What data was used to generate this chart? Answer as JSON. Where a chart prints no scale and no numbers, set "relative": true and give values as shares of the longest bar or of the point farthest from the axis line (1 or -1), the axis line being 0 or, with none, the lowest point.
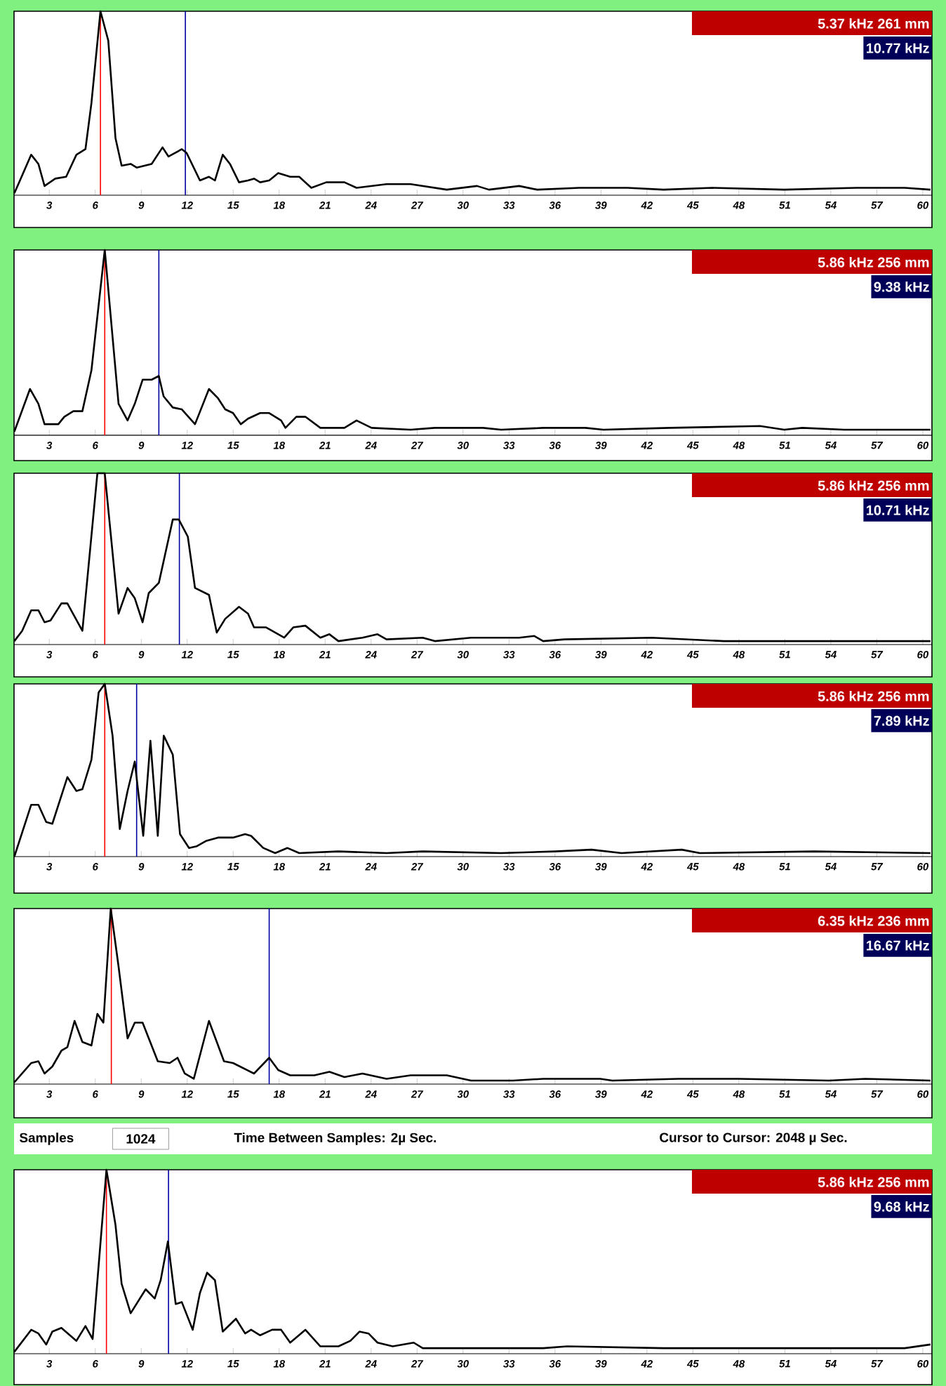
{
  "chart_data": [
    {
      "type": "line",
      "relative": true,
      "xlim": [
        0.7,
        60.6
      ],
      "xticks": [
        3,
        6,
        9,
        12,
        15,
        18,
        21,
        24,
        27,
        30,
        33,
        36,
        39,
        42,
        45,
        48,
        51,
        54,
        57,
        60
      ],
      "marker": "none",
      "series": [
        {
          "color": "#000000",
          "x": [
            0.72,
            1.82,
            2.29,
            2.69,
            3.39,
            4.1,
            4.77,
            5.36,
            5.75,
            6.34,
            6.85,
            7.32,
            7.72,
            8.31,
            8.7,
            9.68,
            10.39,
            10.78,
            11.65,
            11.96,
            12.83,
            13.42,
            13.81,
            14.32,
            14.79,
            15.38,
            15.97,
            16.36,
            16.76,
            17.35,
            17.94,
            18.72,
            19.31,
            20.1,
            21.08,
            22.26,
            23.05,
            25.01,
            26.58,
            28.94,
            30.91,
            31.69,
            33.66,
            34.84,
            37.59,
            40.74,
            43.09,
            46.24,
            50.96,
            55.67,
            58.82,
            60.5
          ],
          "values": [
            0.01,
            0.22,
            0.17,
            0.05,
            0.09,
            0.1,
            0.22,
            0.25,
            0.5,
            1.0,
            0.84,
            0.31,
            0.16,
            0.17,
            0.15,
            0.17,
            0.26,
            0.21,
            0.25,
            0.23,
            0.08,
            0.1,
            0.08,
            0.22,
            0.17,
            0.07,
            0.08,
            0.09,
            0.07,
            0.08,
            0.12,
            0.1,
            0.1,
            0.04,
            0.07,
            0.07,
            0.04,
            0.06,
            0.06,
            0.03,
            0.05,
            0.03,
            0.05,
            0.03,
            0.04,
            0.04,
            0.03,
            0.04,
            0.03,
            0.04,
            0.04,
            0.03
          ]
        }
      ],
      "ref_lines": [
        {
          "axis": "x",
          "value": 6.34,
          "color": "#ff0000"
        },
        {
          "axis": "x",
          "value": 11.88,
          "color": "#0000a0"
        }
      ],
      "annotations": [
        "5.37 kHz  261 mm",
        "10.77 kHz"
      ]
    },
    {
      "type": "line",
      "relative": true,
      "xlim": [
        0.7,
        60.6
      ],
      "xticks": [
        3,
        6,
        9,
        12,
        15,
        18,
        21,
        24,
        27,
        30,
        33,
        36,
        39,
        42,
        45,
        48,
        51,
        54,
        57,
        60
      ],
      "marker": "none",
      "series": [
        {
          "color": "#000000",
          "x": [
            0.72,
            1.74,
            2.29,
            2.69,
            3.59,
            3.98,
            4.57,
            5.16,
            5.75,
            6.62,
            7.52,
            8.11,
            8.58,
            9.09,
            9.68,
            10.15,
            10.46,
            11.06,
            11.65,
            12.51,
            13.42,
            14.01,
            14.48,
            14.99,
            15.5,
            15.97,
            16.76,
            17.35,
            18.13,
            18.41,
            19.12,
            19.71,
            20.69,
            22.26,
            23.05,
            24.03,
            26.58,
            28.16,
            31.3,
            32.48,
            35.23,
            37.98,
            39.16,
            43.48,
            49.38,
            50.96,
            52.13,
            54.88,
            60.5
          ],
          "values": [
            0.02,
            0.25,
            0.17,
            0.06,
            0.06,
            0.1,
            0.13,
            0.13,
            0.35,
            1.0,
            0.17,
            0.08,
            0.17,
            0.3,
            0.3,
            0.32,
            0.21,
            0.15,
            0.14,
            0.06,
            0.25,
            0.2,
            0.14,
            0.12,
            0.06,
            0.09,
            0.12,
            0.12,
            0.08,
            0.04,
            0.1,
            0.1,
            0.04,
            0.04,
            0.08,
            0.04,
            0.03,
            0.04,
            0.04,
            0.03,
            0.04,
            0.04,
            0.03,
            0.04,
            0.05,
            0.03,
            0.04,
            0.03,
            0.03
          ]
        }
      ],
      "ref_lines": [
        {
          "axis": "x",
          "value": 6.62,
          "color": "#ff0000"
        },
        {
          "axis": "x",
          "value": 10.15,
          "color": "#0000a0"
        }
      ],
      "annotations": [
        "5.86 kHz  256 mm",
        "9.38 kHz"
      ]
    },
    {
      "type": "line",
      "relative": true,
      "xlim": [
        0.7,
        60.6
      ],
      "xticks": [
        3,
        6,
        9,
        12,
        15,
        18,
        21,
        24,
        27,
        30,
        33,
        36,
        39,
        42,
        45,
        48,
        51,
        54,
        57,
        60
      ],
      "marker": "none",
      "series": [
        {
          "color": "#000000",
          "x": [
            0.72,
            1.23,
            1.82,
            2.29,
            2.69,
            3.08,
            3.79,
            4.18,
            5.16,
            6.14,
            6.62,
            7.52,
            8.11,
            8.58,
            9.09,
            9.49,
            10.15,
            11.06,
            11.45,
            12.04,
            12.51,
            13.42,
            13.93,
            14.48,
            15.38,
            15.97,
            16.36,
            17.15,
            18.33,
            18.92,
            19.71,
            20.69,
            21.28,
            21.87,
            23.44,
            24.42,
            25.01,
            27.37,
            28.16,
            30.52,
            33.66,
            34.65,
            35.23,
            36.61,
            42.31,
            47.03,
            54.88,
            60.5
          ],
          "values": [
            0.02,
            0.08,
            0.2,
            0.2,
            0.13,
            0.14,
            0.24,
            0.24,
            0.08,
            1.0,
            1.0,
            0.18,
            0.33,
            0.27,
            0.13,
            0.3,
            0.36,
            0.73,
            0.73,
            0.63,
            0.33,
            0.29,
            0.07,
            0.15,
            0.22,
            0.18,
            0.1,
            0.1,
            0.04,
            0.1,
            0.11,
            0.04,
            0.06,
            0.02,
            0.04,
            0.06,
            0.03,
            0.04,
            0.02,
            0.04,
            0.04,
            0.05,
            0.02,
            0.03,
            0.04,
            0.02,
            0.02,
            0.02
          ]
        }
      ],
      "ref_lines": [
        {
          "axis": "x",
          "value": 6.62,
          "color": "#ff0000"
        },
        {
          "axis": "x",
          "value": 11.49,
          "color": "#0000a0"
        }
      ],
      "annotations": [
        "5.86 kHz  256 mm",
        "10.71 kHz"
      ]
    },
    {
      "type": "line",
      "relative": true,
      "xlim": [
        0.7,
        60.6
      ],
      "xticks": [
        3,
        6,
        9,
        12,
        15,
        18,
        21,
        24,
        27,
        30,
        33,
        36,
        39,
        42,
        45,
        48,
        51,
        54,
        57,
        60
      ],
      "marker": "none",
      "series": [
        {
          "color": "#000000",
          "x": [
            0.72,
            1.82,
            2.29,
            2.8,
            3.2,
            4.18,
            4.77,
            5.16,
            5.75,
            6.22,
            6.62,
            7.13,
            7.6,
            8.11,
            8.58,
            9.13,
            9.6,
            10.08,
            10.47,
            11.06,
            11.53,
            12.12,
            12.63,
            13.22,
            14.01,
            14.99,
            15.78,
            16.17,
            16.96,
            17.74,
            18.53,
            19.31,
            21.87,
            25.01,
            27.37,
            32.48,
            36.02,
            38.38,
            40.34,
            44.27,
            45.45,
            52.92,
            60.5
          ],
          "values": [
            0.0,
            0.3,
            0.3,
            0.2,
            0.19,
            0.46,
            0.38,
            0.39,
            0.56,
            0.95,
            1.0,
            0.7,
            0.16,
            0.38,
            0.55,
            0.12,
            0.67,
            0.12,
            0.7,
            0.59,
            0.13,
            0.05,
            0.06,
            0.09,
            0.11,
            0.11,
            0.13,
            0.12,
            0.05,
            0.02,
            0.05,
            0.02,
            0.03,
            0.02,
            0.03,
            0.02,
            0.03,
            0.04,
            0.02,
            0.04,
            0.02,
            0.03,
            0.02
          ]
        }
      ],
      "ref_lines": [
        {
          "axis": "x",
          "value": 6.62,
          "color": "#ff0000"
        },
        {
          "axis": "x",
          "value": 8.7,
          "color": "#0000a0"
        }
      ],
      "annotations": [
        "5.86 kHz  256 mm",
        "7.89 kHz"
      ]
    },
    {
      "type": "line",
      "relative": true,
      "xlim": [
        0.7,
        60.6
      ],
      "xticks": [
        3,
        6,
        9,
        12,
        15,
        18,
        21,
        24,
        27,
        30,
        33,
        36,
        39,
        42,
        45,
        48,
        51,
        54,
        57,
        60
      ],
      "marker": "none",
      "series": [
        {
          "color": "#000000",
          "x": [
            0.72,
            1.82,
            2.29,
            2.69,
            3.2,
            3.79,
            4.18,
            4.65,
            5.16,
            5.75,
            6.14,
            6.53,
            7.01,
            7.52,
            8.11,
            8.58,
            9.09,
            10.08,
            10.86,
            11.37,
            11.84,
            12.43,
            13.42,
            14.4,
            14.99,
            16.36,
            17.35,
            17.94,
            18.72,
            20.3,
            21.28,
            22.26,
            23.44,
            25.01,
            26.58,
            28.94,
            30.52,
            33.27,
            35.23,
            38.95,
            39.74,
            44.06,
            47.99,
            53.89,
            56.25,
            60.5
          ],
          "values": [
            0.01,
            0.12,
            0.13,
            0.06,
            0.1,
            0.19,
            0.21,
            0.36,
            0.24,
            0.22,
            0.4,
            0.35,
            1.0,
            0.67,
            0.26,
            0.35,
            0.35,
            0.13,
            0.12,
            0.15,
            0.06,
            0.03,
            0.36,
            0.13,
            0.12,
            0.06,
            0.15,
            0.08,
            0.05,
            0.05,
            0.07,
            0.04,
            0.06,
            0.03,
            0.05,
            0.05,
            0.02,
            0.02,
            0.03,
            0.03,
            0.02,
            0.03,
            0.03,
            0.02,
            0.03,
            0.02
          ]
        }
      ],
      "ref_lines": [
        {
          "axis": "x",
          "value": 7.05,
          "color": "#ff0000"
        },
        {
          "axis": "x",
          "value": 17.35,
          "color": "#0000a0"
        }
      ],
      "annotations": [
        "6.35 kHz  236 mm",
        "16.67 kHz",
        "Samples",
        "1024",
        "Time Between Samples: 2µ Sec.",
        "Cursor to Cursor: 2048 µ Sec."
      ]
    },
    {
      "type": "line",
      "relative": true,
      "xlim": [
        0.7,
        60.6
      ],
      "xticks": [
        3,
        6,
        9,
        12,
        15,
        18,
        21,
        24,
        27,
        30,
        33,
        36,
        39,
        42,
        45,
        48,
        51,
        54,
        57,
        60
      ],
      "marker": "none",
      "series": [
        {
          "color": "#000000",
          "x": [
            0.72,
            1.82,
            2.29,
            2.8,
            3.2,
            3.79,
            4.77,
            5.36,
            5.83,
            6.73,
            7.32,
            7.72,
            8.31,
            9.29,
            9.88,
            10.27,
            10.74,
            11.25,
            11.65,
            12.36,
            12.83,
            13.3,
            13.81,
            14.32,
            15.18,
            15.78,
            16.17,
            16.76,
            17.54,
            18.13,
            18.72,
            19.71,
            20.69,
            21.87,
            22.65,
            23.24,
            23.83,
            24.42,
            25.41,
            26.78,
            27.37,
            31.3,
            35.23,
            36.8,
            43.09,
            54.88,
            58.82,
            60.5
          ],
          "values": [
            0.01,
            0.13,
            0.11,
            0.05,
            0.12,
            0.14,
            0.07,
            0.15,
            0.08,
            1.0,
            0.7,
            0.38,
            0.22,
            0.35,
            0.3,
            0.4,
            0.61,
            0.27,
            0.28,
            0.13,
            0.33,
            0.44,
            0.4,
            0.12,
            0.19,
            0.11,
            0.13,
            0.1,
            0.13,
            0.13,
            0.06,
            0.13,
            0.04,
            0.04,
            0.07,
            0.12,
            0.11,
            0.06,
            0.04,
            0.06,
            0.03,
            0.03,
            0.03,
            0.04,
            0.03,
            0.03,
            0.03,
            0.05
          ]
        }
      ],
      "ref_lines": [
        {
          "axis": "x",
          "value": 6.73,
          "color": "#ff0000"
        },
        {
          "axis": "x",
          "value": 10.78,
          "color": "#0000a0"
        }
      ],
      "annotations": [
        "5.86 kHz  256 mm",
        "9.68 kHz"
      ]
    }
  ]
}
